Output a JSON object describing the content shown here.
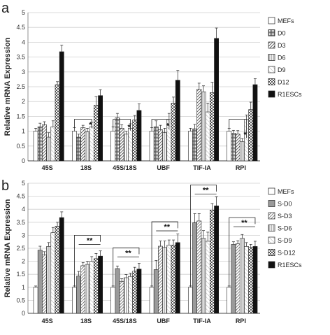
{
  "chart_data": [
    {
      "type": "bar",
      "panel": "a",
      "title": "",
      "xlabel": "",
      "ylabel": "Relative mRNA Expression",
      "ylim": [
        0,
        5
      ],
      "yticks": [
        "0",
        "0.5",
        "1",
        "1.5",
        "2",
        "2.5",
        "3",
        "3.5",
        "4",
        "4.5",
        "5"
      ],
      "grid": true,
      "legend_position": "right",
      "categories": [
        "45S",
        "18S",
        "45S/18S",
        "UBF",
        "TIF-IA",
        "RPI"
      ],
      "series": [
        {
          "name": "MEFs",
          "pattern": "white",
          "values": [
            1.0,
            1.0,
            1.0,
            1.0,
            1.0,
            1.0
          ]
        },
        {
          "name": "D0",
          "pattern": "hgrid",
          "values": [
            1.15,
            0.8,
            1.45,
            1.15,
            1.08,
            0.93
          ]
        },
        {
          "name": "D3",
          "pattern": "diagdense",
          "values": [
            1.22,
            1.12,
            1.1,
            1.05,
            2.42,
            0.9
          ]
        },
        {
          "name": "D6",
          "pattern": "vlines",
          "values": [
            0.8,
            0.98,
            0.9,
            0.95,
            2.33,
            0.65
          ]
        },
        {
          "name": "D9",
          "pattern": "diaglight",
          "values": [
            1.15,
            1.15,
            1.1,
            1.4,
            1.65,
            1.4
          ]
        },
        {
          "name": "D12",
          "pattern": "check",
          "values": [
            2.57,
            1.87,
            1.38,
            1.95,
            2.3,
            1.73
          ]
        },
        {
          "name": "R1ESCs",
          "pattern": "black",
          "values": [
            3.68,
            2.2,
            1.7,
            2.72,
            4.13,
            2.57
          ]
        }
      ],
      "errors": [
        [
          0.1,
          0.12,
          0.15,
          0.12,
          0.1,
          0.1
        ],
        [
          0.12,
          0.1,
          0.15,
          0.2,
          0.15,
          0.1
        ],
        [
          0.1,
          0.08,
          0.12,
          0.15,
          0.2,
          0.12
        ],
        [
          0.15,
          0.12,
          0.1,
          0.15,
          0.2,
          0.1
        ],
        [
          0.2,
          0.15,
          0.15,
          0.2,
          0.3,
          0.15
        ],
        [
          0.1,
          0.3,
          0.15,
          0.2,
          0.35,
          0.25
        ],
        [
          0.22,
          0.2,
          0.22,
          0.33,
          0.35,
          0.2
        ]
      ],
      "annotations": [
        {
          "category": 1,
          "label": "*",
          "bracket": true,
          "from_series": 0,
          "to_series": 3
        },
        {
          "category": 2,
          "label": "*",
          "bracket": true,
          "from_series": 0,
          "to_series": 3
        },
        {
          "category": 3,
          "label": "*",
          "bracket": true,
          "from_series": 0,
          "to_series": 3
        },
        {
          "category": 5,
          "label": "*",
          "bracket": true,
          "from_series": 0,
          "to_series": 3
        }
      ]
    },
    {
      "type": "bar",
      "panel": "b",
      "title": "",
      "xlabel": "",
      "ylabel": "Relative mRNA Expression",
      "ylim": [
        0,
        5
      ],
      "yticks": [
        "0",
        "0.5",
        "1",
        "1.5",
        "2",
        "2.5",
        "3",
        "3.5",
        "4",
        "4.5",
        "5"
      ],
      "grid": true,
      "legend_position": "right",
      "categories": [
        "45S",
        "18S",
        "45S/18S",
        "UBF",
        "TIF-IA",
        "RPI"
      ],
      "series": [
        {
          "name": "MEFs",
          "pattern": "white",
          "values": [
            1.0,
            1.0,
            1.0,
            1.0,
            1.0,
            1.0
          ]
        },
        {
          "name": "S-D0",
          "pattern": "gray",
          "values": [
            2.43,
            1.43,
            1.72,
            1.68,
            3.48,
            2.65
          ]
        },
        {
          "name": "S-D3",
          "pattern": "diag",
          "values": [
            2.25,
            1.83,
            1.23,
            2.58,
            3.55,
            2.67
          ]
        },
        {
          "name": "S-D6",
          "pattern": "vlines",
          "values": [
            2.57,
            1.88,
            1.37,
            2.53,
            2.88,
            2.88
          ]
        },
        {
          "name": "S-D9",
          "pattern": "diaglight",
          "values": [
            3.1,
            2.0,
            1.42,
            2.62,
            2.77,
            2.57
          ]
        },
        {
          "name": "S-D12",
          "pattern": "check",
          "values": [
            3.35,
            2.1,
            1.62,
            2.62,
            3.97,
            2.53
          ]
        },
        {
          "name": "R1ESCs",
          "pattern": "black",
          "values": [
            3.68,
            2.2,
            1.7,
            2.72,
            4.13,
            2.57
          ]
        }
      ],
      "errors": [
        [
          0.05,
          0.05,
          0.05,
          0.05,
          0.05,
          0.05
        ],
        [
          0.15,
          0.18,
          0.1,
          0.35,
          0.35,
          0.1
        ],
        [
          0.12,
          0.12,
          0.1,
          0.2,
          0.28,
          0.12
        ],
        [
          0.15,
          0.12,
          0.12,
          0.25,
          0.3,
          0.15
        ],
        [
          0.2,
          0.18,
          0.12,
          0.2,
          0.35,
          0.15
        ],
        [
          0.15,
          0.2,
          0.15,
          0.2,
          0.25,
          0.12
        ],
        [
          0.22,
          0.2,
          0.22,
          0.33,
          0.35,
          0.2
        ]
      ],
      "annotations": [
        {
          "category": 1,
          "label": "**",
          "bracket": true
        },
        {
          "category": 2,
          "label": "**",
          "bracket": true
        },
        {
          "category": 3,
          "label": "**",
          "bracket": true
        },
        {
          "category": 4,
          "label": "**",
          "bracket": true
        },
        {
          "category": 5,
          "label": "**",
          "bracket": true
        }
      ]
    }
  ]
}
